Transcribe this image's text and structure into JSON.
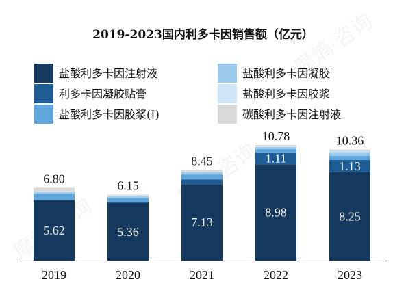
{
  "chart_data": {
    "type": "bar",
    "stacked": true,
    "title": "2019-2023国内利多卡因销售额（亿元）",
    "categories": [
      "2019",
      "2020",
      "2021",
      "2022",
      "2023"
    ],
    "series": [
      {
        "name": "盐酸利多卡因注射液",
        "color": "#163A5F",
        "values": [
          5.62,
          5.36,
          7.13,
          8.98,
          8.25
        ],
        "labels": [
          "5.62",
          "5.36",
          "7.13",
          "8.98",
          "8.25"
        ]
      },
      {
        "name": "利多卡因凝胶贴膏",
        "color": "#1D5C94",
        "values": [
          0.05,
          0.07,
          0.45,
          1.11,
          1.13
        ],
        "labels": [
          "",
          "",
          "",
          "1.11",
          "1.13"
        ]
      },
      {
        "name": "盐酸利多卡因胶浆(I)",
        "color": "#5FA6DC",
        "values": [
          0.55,
          0.4,
          0.45,
          0.3,
          0.4
        ],
        "labels": [
          "",
          "",
          "",
          "",
          ""
        ]
      },
      {
        "name": "盐酸利多卡因凝胶",
        "color": "#9CCBEE",
        "values": [
          0.18,
          0.17,
          0.2,
          0.21,
          0.33
        ],
        "labels": [
          "",
          "",
          "",
          "",
          ""
        ]
      },
      {
        "name": "盐酸利多卡因胶浆",
        "color": "#CFE6F7",
        "values": [
          0.05,
          0.05,
          0.07,
          0.08,
          0.1
        ],
        "labels": [
          "",
          "",
          "",
          "",
          ""
        ]
      },
      {
        "name": "碳酸利多卡因注射液",
        "color": "#D9D9D9",
        "values": [
          0.35,
          0.1,
          0.15,
          0.1,
          0.15
        ],
        "labels": [
          "",
          "",
          "",
          "",
          ""
        ]
      }
    ],
    "totals": [
      "6.80",
      "6.15",
      "8.45",
      "10.78",
      "10.36"
    ],
    "ylim": [
      0,
      11.2
    ],
    "grid": false,
    "legend": "top"
  }
}
